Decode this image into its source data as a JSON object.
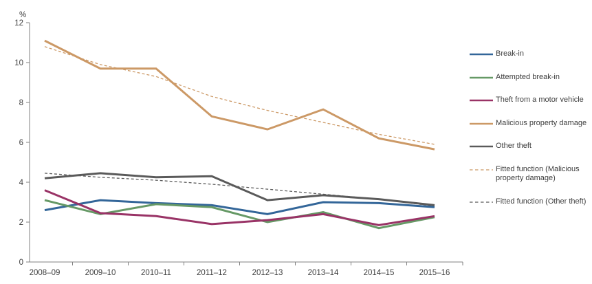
{
  "chart_data": {
    "type": "line",
    "title": "",
    "ylabel": "%",
    "xlabel": "",
    "grid": false,
    "legend_position": "right",
    "ylim": [
      0,
      12
    ],
    "yticks": [
      0,
      2,
      4,
      6,
      8,
      10,
      12
    ],
    "categories": [
      "2008–09",
      "2009–10",
      "2010–11",
      "2011–12",
      "2012–13",
      "2013–14",
      "2014–15",
      "2015–16"
    ],
    "series": [
      {
        "name": "Break-in",
        "color": "#336699",
        "style": "solid",
        "values": [
          2.6,
          3.1,
          2.95,
          2.85,
          2.4,
          3.0,
          2.95,
          2.75
        ]
      },
      {
        "name": "Attempted break-in",
        "color": "#669966",
        "style": "solid",
        "values": [
          3.1,
          2.4,
          2.9,
          2.75,
          2.0,
          2.5,
          1.7,
          2.25
        ]
      },
      {
        "name": "Theft from a motor vehicle",
        "color": "#993366",
        "style": "solid",
        "values": [
          3.6,
          2.45,
          2.3,
          1.9,
          2.1,
          2.4,
          1.85,
          2.3
        ]
      },
      {
        "name": "Malicious property damage",
        "color": "#cc9966",
        "style": "solid",
        "values": [
          11.1,
          9.7,
          9.7,
          7.3,
          6.65,
          7.65,
          6.2,
          5.65
        ]
      },
      {
        "name": "Other theft",
        "color": "#5a5a5a",
        "style": "solid",
        "values": [
          4.2,
          4.45,
          4.25,
          4.3,
          3.1,
          3.35,
          3.15,
          2.85
        ]
      },
      {
        "name": "Fitted function (Malicious property damage)",
        "color": "#cc9966",
        "style": "dashed",
        "values": [
          10.8,
          9.9,
          9.3,
          8.3,
          7.6,
          7.0,
          6.4,
          5.9
        ]
      },
      {
        "name": "Fitted function (Other theft)",
        "color": "#5a5a5a",
        "style": "dashed",
        "values": [
          4.45,
          4.25,
          4.1,
          3.9,
          3.65,
          3.4,
          3.15,
          2.8
        ]
      }
    ]
  }
}
